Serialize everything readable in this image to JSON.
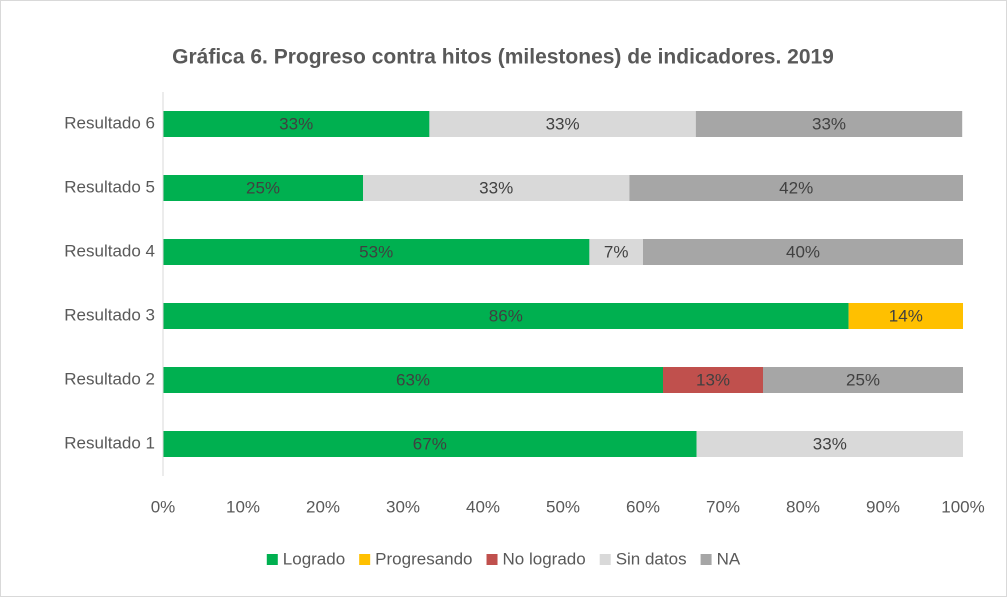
{
  "chart_data": {
    "type": "stacked_barh",
    "title": "Gráfica 6. Progreso contra hitos (milestones) de indicadores. 2019",
    "categories": [
      "Resultado 1",
      "Resultado 2",
      "Resultado 3",
      "Resultado 4",
      "Resultado 5",
      "Resultado 6"
    ],
    "series": [
      {
        "name": "Logrado",
        "color": "#00b050",
        "values": [
          66.7,
          62.5,
          85.7,
          53.3,
          25,
          33.3
        ],
        "value_labels": [
          "67%",
          "63%",
          "86%",
          "53%",
          "25%",
          "33%"
        ]
      },
      {
        "name": "Progresando",
        "color": "#ffc000",
        "values": [
          null,
          null,
          14.3,
          null,
          null,
          null
        ],
        "value_labels": [
          null,
          null,
          "14%",
          null,
          null,
          null
        ]
      },
      {
        "name": "No logrado",
        "color": "#c0504d",
        "values": [
          null,
          12.5,
          null,
          null,
          null,
          null
        ],
        "value_labels": [
          null,
          "13%",
          null,
          null,
          null,
          null
        ]
      },
      {
        "name": "Sin datos",
        "color": "#d9d9d9",
        "values": [
          33.3,
          null,
          null,
          6.7,
          33.3,
          33.3
        ],
        "value_labels": [
          "33%",
          null,
          null,
          "7%",
          "33%",
          "33%"
        ]
      },
      {
        "name": "NA",
        "color": "#a6a6a6",
        "values": [
          null,
          25,
          null,
          40,
          41.7,
          33.3
        ],
        "value_labels": [
          null,
          "25%",
          null,
          "40%",
          "42%",
          "33%"
        ]
      }
    ],
    "xlim": [
      0,
      100
    ],
    "xticks": [
      {
        "value": 0,
        "label": "0%"
      },
      {
        "value": 10,
        "label": "10%"
      },
      {
        "value": 20,
        "label": "20%"
      },
      {
        "value": 30,
        "label": "30%"
      },
      {
        "value": 40,
        "label": "40%"
      },
      {
        "value": 50,
        "label": "50%"
      },
      {
        "value": 60,
        "label": "60%"
      },
      {
        "value": 70,
        "label": "70%"
      },
      {
        "value": 80,
        "label": "80%"
      },
      {
        "value": 90,
        "label": "90%"
      },
      {
        "value": 100,
        "label": "100%"
      }
    ],
    "grid": false,
    "legend": "bottom"
  }
}
